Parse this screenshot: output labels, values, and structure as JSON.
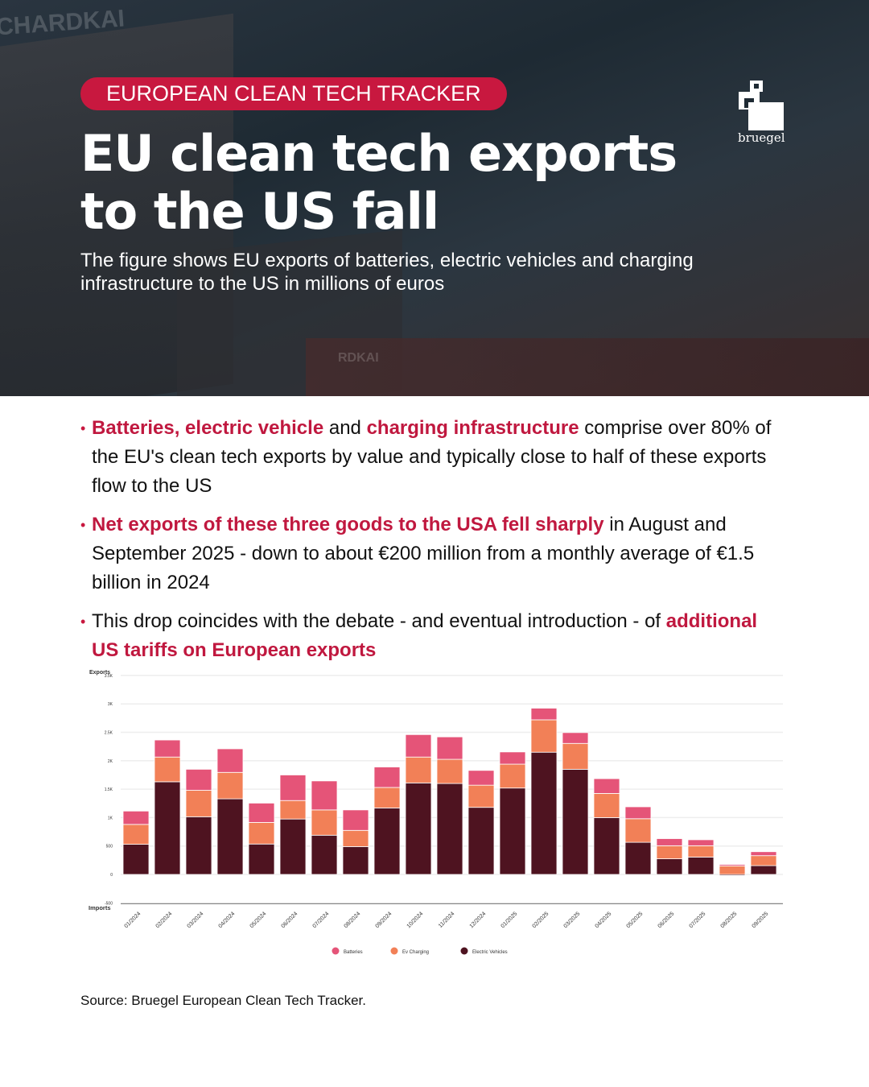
{
  "header": {
    "tag": "EUROPEAN CLEAN TECH TRACKER",
    "title_line1": "EU clean tech exports",
    "title_line2": "to the US fall",
    "subtitle": "The figure shows EU exports of batteries, electric vehicles and charging infrastructure to the US in millions of euros",
    "logo_text": "bruegel",
    "bg_texts": [
      "CHARDKAI",
      "RDKAI"
    ]
  },
  "bullets": [
    {
      "parts": [
        {
          "t": "Batteries, electric vehicle",
          "h": true
        },
        {
          "t": " and ",
          "h": false
        },
        {
          "t": "charging infrastructure",
          "h": true
        },
        {
          "t": " comprise over 80% of the EU's clean tech exports by value and typically close to half of these exports flow to the US",
          "h": false
        }
      ]
    },
    {
      "parts": [
        {
          "t": "Net exports of these three goods to the USA fell sharply",
          "h": true
        },
        {
          "t": " in August and September 2025 - down to about €200 million from a monthly average of €1.5 billion in 2024",
          "h": false
        }
      ]
    },
    {
      "parts": [
        {
          "t": "This drop coincides with the debate - and eventual introduction - of ",
          "h": false
        },
        {
          "t": "additional US tariffs on European exports",
          "h": true
        }
      ]
    }
  ],
  "chart_data": {
    "type": "bar",
    "stacked": true,
    "ylabel_top": "Exports",
    "ylabel_bottom": "Imports",
    "ylim": [
      -500,
      3500
    ],
    "yticks": [
      {
        "v": -500,
        "l": "-500"
      },
      {
        "v": 0,
        "l": "0"
      },
      {
        "v": 500,
        "l": "500"
      },
      {
        "v": 1000,
        "l": "1K"
      },
      {
        "v": 1500,
        "l": "1.5K"
      },
      {
        "v": 2000,
        "l": "2K"
      },
      {
        "v": 2500,
        "l": "2.5K"
      },
      {
        "v": 3000,
        "l": "3K"
      },
      {
        "v": 3500,
        "l": "3.5K"
      }
    ],
    "categories": [
      "01/2024",
      "02/2024",
      "03/2024",
      "04/2024",
      "05/2024",
      "06/2024",
      "07/2024",
      "08/2024",
      "09/2024",
      "10/2024",
      "11/2024",
      "12/2024",
      "01/2025",
      "02/2025",
      "03/2025",
      "04/2025",
      "05/2025",
      "06/2025",
      "07/2025",
      "08/2025",
      "09/2025"
    ],
    "series": [
      {
        "name": "Electric Vehicles",
        "color": "#4e1320",
        "values": [
          530,
          1630,
          1015,
          1330,
          535,
          975,
          690,
          490,
          1170,
          1610,
          1600,
          1180,
          1520,
          2150,
          1850,
          1000,
          565,
          275,
          305,
          -20,
          155
        ]
      },
      {
        "name": "Ev Charging",
        "color": "#f28057",
        "values": [
          350,
          435,
          465,
          465,
          380,
          325,
          445,
          285,
          360,
          455,
          425,
          390,
          420,
          570,
          455,
          425,
          415,
          230,
          200,
          150,
          175
        ]
      },
      {
        "name": "Batteries",
        "color": "#e55478",
        "values": [
          235,
          300,
          370,
          415,
          340,
          450,
          510,
          360,
          360,
          395,
          395,
          260,
          215,
          205,
          190,
          260,
          210,
          125,
          105,
          25,
          70
        ]
      }
    ],
    "legend_order": [
      2,
      1,
      0
    ],
    "legend": "bottom-center"
  },
  "footer": {
    "source": "Source: Bruegel European Clean Tech Tracker."
  }
}
